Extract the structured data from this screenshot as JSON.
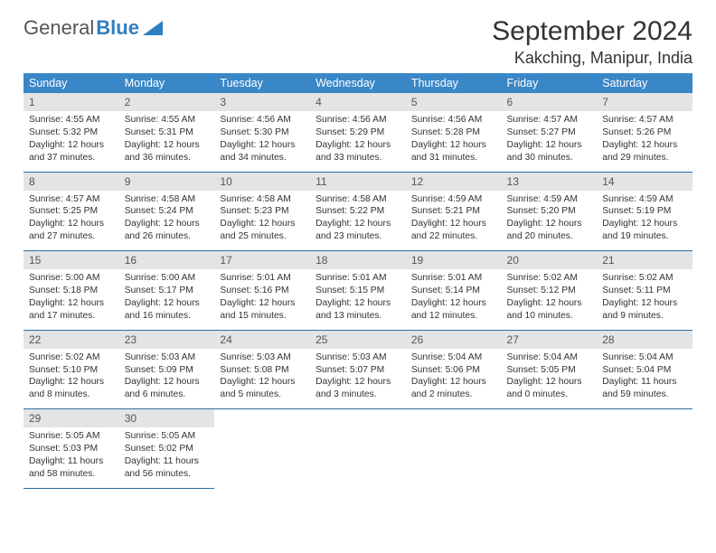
{
  "logo": {
    "part1": "General",
    "part2": "Blue"
  },
  "title": "September 2024",
  "location": "Kakching, Manipur, India",
  "colors": {
    "header_bg": "#3a87c7",
    "header_fg": "#ffffff",
    "daynum_bg": "#e4e4e4",
    "row_border": "#2f6fa3",
    "logo_blue": "#2f7fc1"
  },
  "weekdays": [
    "Sunday",
    "Monday",
    "Tuesday",
    "Wednesday",
    "Thursday",
    "Friday",
    "Saturday"
  ],
  "weeks": [
    [
      {
        "n": "1",
        "sr": "Sunrise: 4:55 AM",
        "ss": "Sunset: 5:32 PM",
        "d1": "Daylight: 12 hours",
        "d2": "and 37 minutes."
      },
      {
        "n": "2",
        "sr": "Sunrise: 4:55 AM",
        "ss": "Sunset: 5:31 PM",
        "d1": "Daylight: 12 hours",
        "d2": "and 36 minutes."
      },
      {
        "n": "3",
        "sr": "Sunrise: 4:56 AM",
        "ss": "Sunset: 5:30 PM",
        "d1": "Daylight: 12 hours",
        "d2": "and 34 minutes."
      },
      {
        "n": "4",
        "sr": "Sunrise: 4:56 AM",
        "ss": "Sunset: 5:29 PM",
        "d1": "Daylight: 12 hours",
        "d2": "and 33 minutes."
      },
      {
        "n": "5",
        "sr": "Sunrise: 4:56 AM",
        "ss": "Sunset: 5:28 PM",
        "d1": "Daylight: 12 hours",
        "d2": "and 31 minutes."
      },
      {
        "n": "6",
        "sr": "Sunrise: 4:57 AM",
        "ss": "Sunset: 5:27 PM",
        "d1": "Daylight: 12 hours",
        "d2": "and 30 minutes."
      },
      {
        "n": "7",
        "sr": "Sunrise: 4:57 AM",
        "ss": "Sunset: 5:26 PM",
        "d1": "Daylight: 12 hours",
        "d2": "and 29 minutes."
      }
    ],
    [
      {
        "n": "8",
        "sr": "Sunrise: 4:57 AM",
        "ss": "Sunset: 5:25 PM",
        "d1": "Daylight: 12 hours",
        "d2": "and 27 minutes."
      },
      {
        "n": "9",
        "sr": "Sunrise: 4:58 AM",
        "ss": "Sunset: 5:24 PM",
        "d1": "Daylight: 12 hours",
        "d2": "and 26 minutes."
      },
      {
        "n": "10",
        "sr": "Sunrise: 4:58 AM",
        "ss": "Sunset: 5:23 PM",
        "d1": "Daylight: 12 hours",
        "d2": "and 25 minutes."
      },
      {
        "n": "11",
        "sr": "Sunrise: 4:58 AM",
        "ss": "Sunset: 5:22 PM",
        "d1": "Daylight: 12 hours",
        "d2": "and 23 minutes."
      },
      {
        "n": "12",
        "sr": "Sunrise: 4:59 AM",
        "ss": "Sunset: 5:21 PM",
        "d1": "Daylight: 12 hours",
        "d2": "and 22 minutes."
      },
      {
        "n": "13",
        "sr": "Sunrise: 4:59 AM",
        "ss": "Sunset: 5:20 PM",
        "d1": "Daylight: 12 hours",
        "d2": "and 20 minutes."
      },
      {
        "n": "14",
        "sr": "Sunrise: 4:59 AM",
        "ss": "Sunset: 5:19 PM",
        "d1": "Daylight: 12 hours",
        "d2": "and 19 minutes."
      }
    ],
    [
      {
        "n": "15",
        "sr": "Sunrise: 5:00 AM",
        "ss": "Sunset: 5:18 PM",
        "d1": "Daylight: 12 hours",
        "d2": "and 17 minutes."
      },
      {
        "n": "16",
        "sr": "Sunrise: 5:00 AM",
        "ss": "Sunset: 5:17 PM",
        "d1": "Daylight: 12 hours",
        "d2": "and 16 minutes."
      },
      {
        "n": "17",
        "sr": "Sunrise: 5:01 AM",
        "ss": "Sunset: 5:16 PM",
        "d1": "Daylight: 12 hours",
        "d2": "and 15 minutes."
      },
      {
        "n": "18",
        "sr": "Sunrise: 5:01 AM",
        "ss": "Sunset: 5:15 PM",
        "d1": "Daylight: 12 hours",
        "d2": "and 13 minutes."
      },
      {
        "n": "19",
        "sr": "Sunrise: 5:01 AM",
        "ss": "Sunset: 5:14 PM",
        "d1": "Daylight: 12 hours",
        "d2": "and 12 minutes."
      },
      {
        "n": "20",
        "sr": "Sunrise: 5:02 AM",
        "ss": "Sunset: 5:12 PM",
        "d1": "Daylight: 12 hours",
        "d2": "and 10 minutes."
      },
      {
        "n": "21",
        "sr": "Sunrise: 5:02 AM",
        "ss": "Sunset: 5:11 PM",
        "d1": "Daylight: 12 hours",
        "d2": "and 9 minutes."
      }
    ],
    [
      {
        "n": "22",
        "sr": "Sunrise: 5:02 AM",
        "ss": "Sunset: 5:10 PM",
        "d1": "Daylight: 12 hours",
        "d2": "and 8 minutes."
      },
      {
        "n": "23",
        "sr": "Sunrise: 5:03 AM",
        "ss": "Sunset: 5:09 PM",
        "d1": "Daylight: 12 hours",
        "d2": "and 6 minutes."
      },
      {
        "n": "24",
        "sr": "Sunrise: 5:03 AM",
        "ss": "Sunset: 5:08 PM",
        "d1": "Daylight: 12 hours",
        "d2": "and 5 minutes."
      },
      {
        "n": "25",
        "sr": "Sunrise: 5:03 AM",
        "ss": "Sunset: 5:07 PM",
        "d1": "Daylight: 12 hours",
        "d2": "and 3 minutes."
      },
      {
        "n": "26",
        "sr": "Sunrise: 5:04 AM",
        "ss": "Sunset: 5:06 PM",
        "d1": "Daylight: 12 hours",
        "d2": "and 2 minutes."
      },
      {
        "n": "27",
        "sr": "Sunrise: 5:04 AM",
        "ss": "Sunset: 5:05 PM",
        "d1": "Daylight: 12 hours",
        "d2": "and 0 minutes."
      },
      {
        "n": "28",
        "sr": "Sunrise: 5:04 AM",
        "ss": "Sunset: 5:04 PM",
        "d1": "Daylight: 11 hours",
        "d2": "and 59 minutes."
      }
    ],
    [
      {
        "n": "29",
        "sr": "Sunrise: 5:05 AM",
        "ss": "Sunset: 5:03 PM",
        "d1": "Daylight: 11 hours",
        "d2": "and 58 minutes."
      },
      {
        "n": "30",
        "sr": "Sunrise: 5:05 AM",
        "ss": "Sunset: 5:02 PM",
        "d1": "Daylight: 11 hours",
        "d2": "and 56 minutes."
      },
      null,
      null,
      null,
      null,
      null
    ]
  ]
}
